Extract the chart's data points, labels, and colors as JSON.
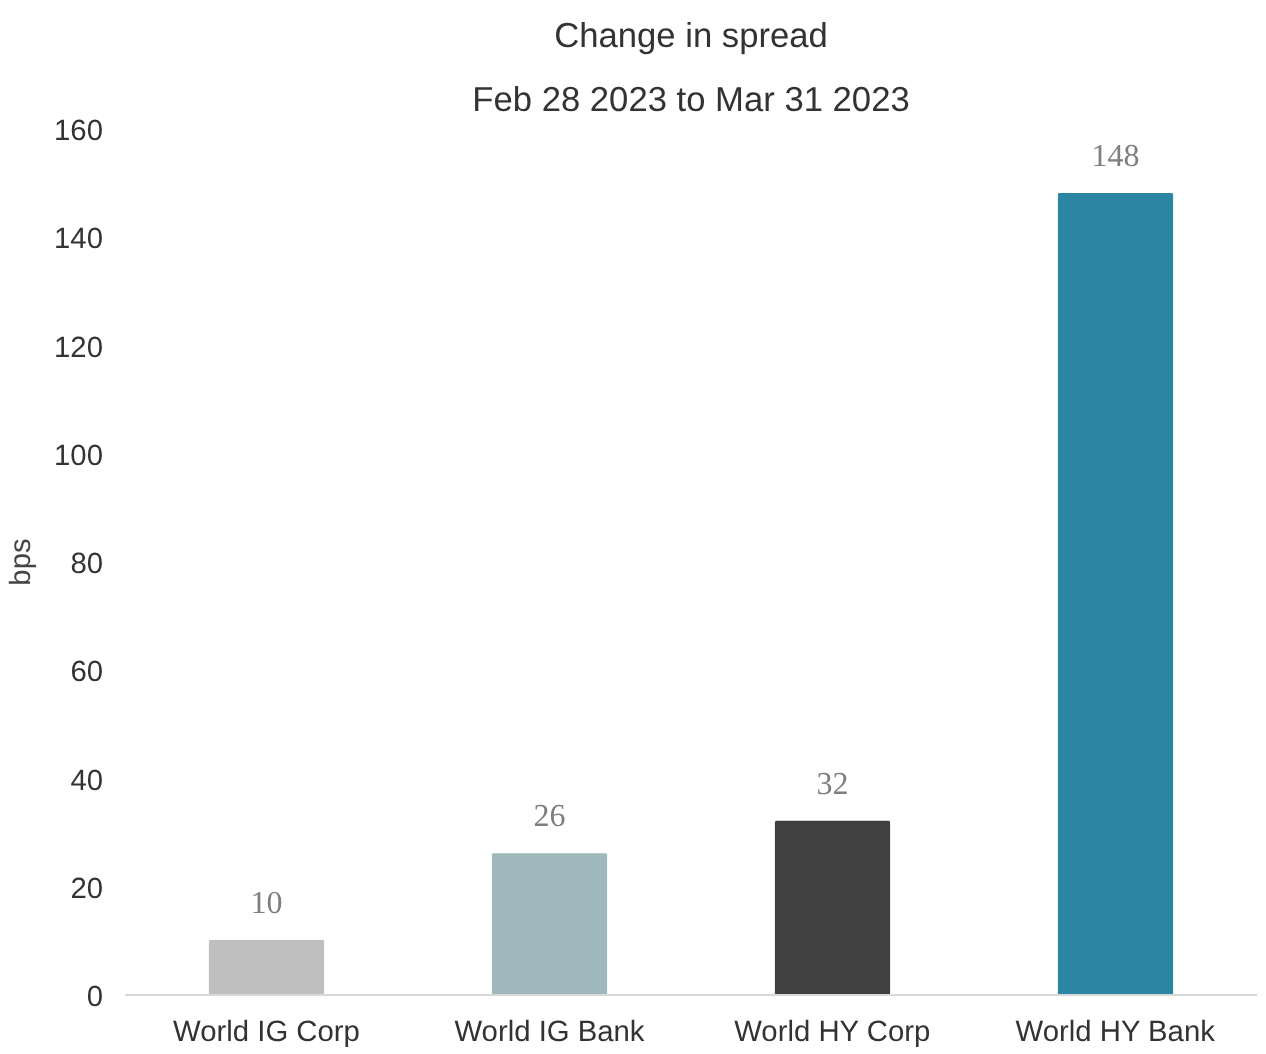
{
  "chart_data": {
    "type": "bar",
    "title": "Change in spread",
    "subtitle": "Feb 28 2023 to Mar 31 2023",
    "ylabel": "bps",
    "categories": [
      "World IG Corp",
      "World IG Bank",
      "World HY Corp",
      "World HY Bank"
    ],
    "values": [
      10,
      26,
      32,
      148
    ],
    "colors": [
      "#bfbfbf",
      "#9fb8bd",
      "#404040",
      "#2a86a3"
    ],
    "ylim": [
      0,
      160
    ],
    "yticks": [
      0,
      20,
      40,
      60,
      80,
      100,
      120,
      140,
      160
    ],
    "grid": false,
    "data_labels": true
  }
}
